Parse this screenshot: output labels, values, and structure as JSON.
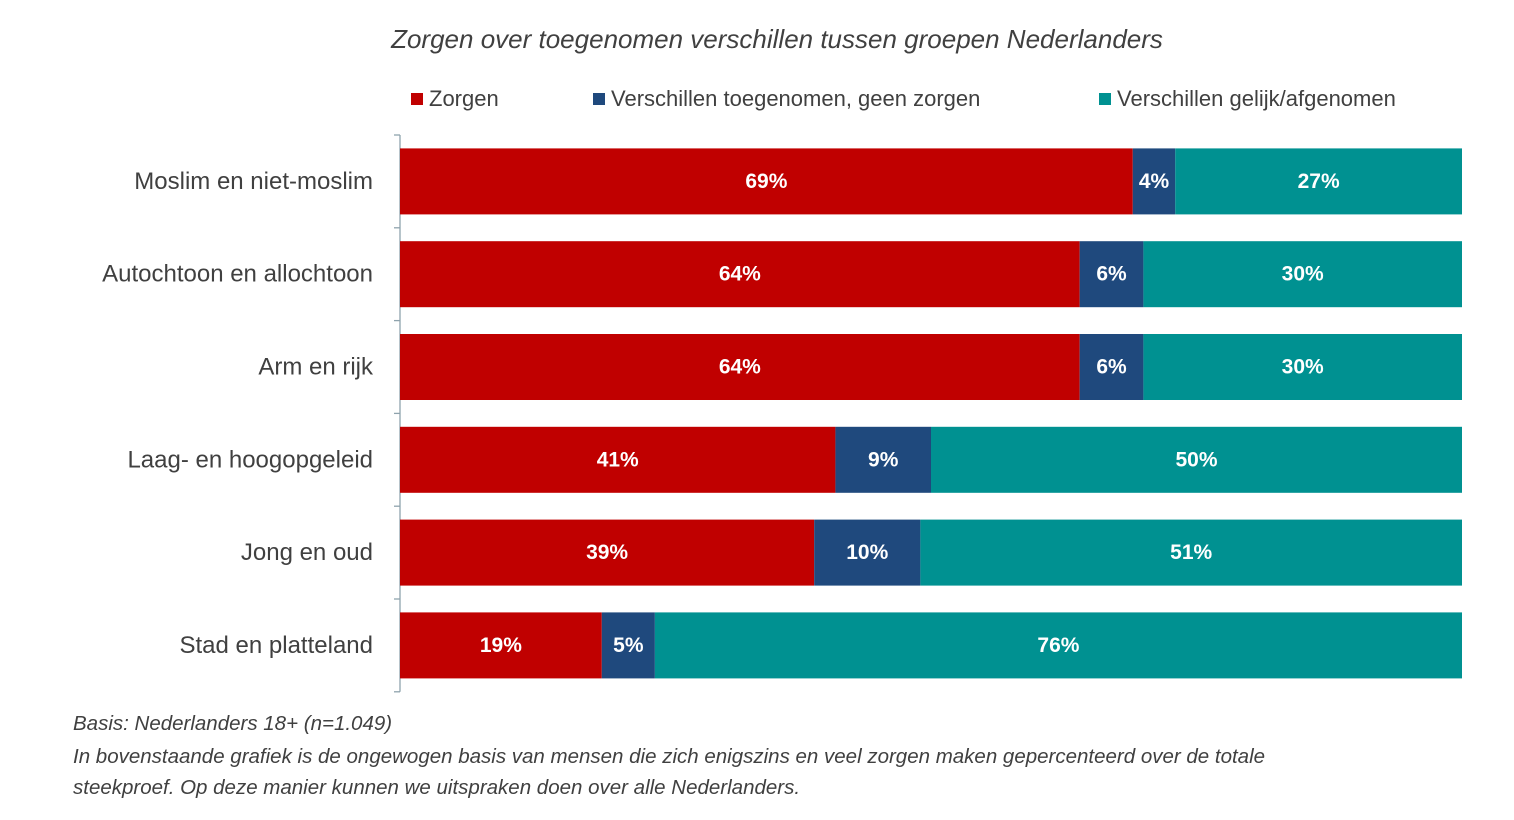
{
  "chart_data": {
    "type": "bar",
    "orientation": "horizontal",
    "stacked": true,
    "title": "Zorgen over toegenomen verschillen tussen groepen Nederlanders",
    "categories": [
      "Moslim en niet-moslim",
      "Autochtoon en allochtoon",
      "Arm en rijk",
      "Laag- en hoogopgeleid",
      "Jong en oud",
      "Stad en platteland"
    ],
    "series": [
      {
        "name": "Zorgen",
        "color": "#c00000",
        "values": [
          69,
          64,
          64,
          41,
          39,
          19
        ]
      },
      {
        "name": "Verschillen toegenomen, geen zorgen",
        "color": "#1f497d",
        "values": [
          4,
          6,
          6,
          9,
          10,
          5
        ]
      },
      {
        "name": "Verschillen gelijk/afgenomen",
        "color": "#009191",
        "values": [
          27,
          30,
          30,
          50,
          51,
          76
        ]
      }
    ],
    "value_suffix": "%",
    "xlim": [
      0,
      100
    ],
    "grid": false,
    "legend_position": "top"
  },
  "footnotes": [
    "Basis: Nederlanders 18+ (n=1.049)",
    "In bovenstaande grafiek is de ongewogen basis van mensen die zich enigszins en veel zorgen maken gepercenteerd over de totale",
    "steekproef. Op deze manier kunnen we uitspraken doen over alle Nederlanders."
  ]
}
